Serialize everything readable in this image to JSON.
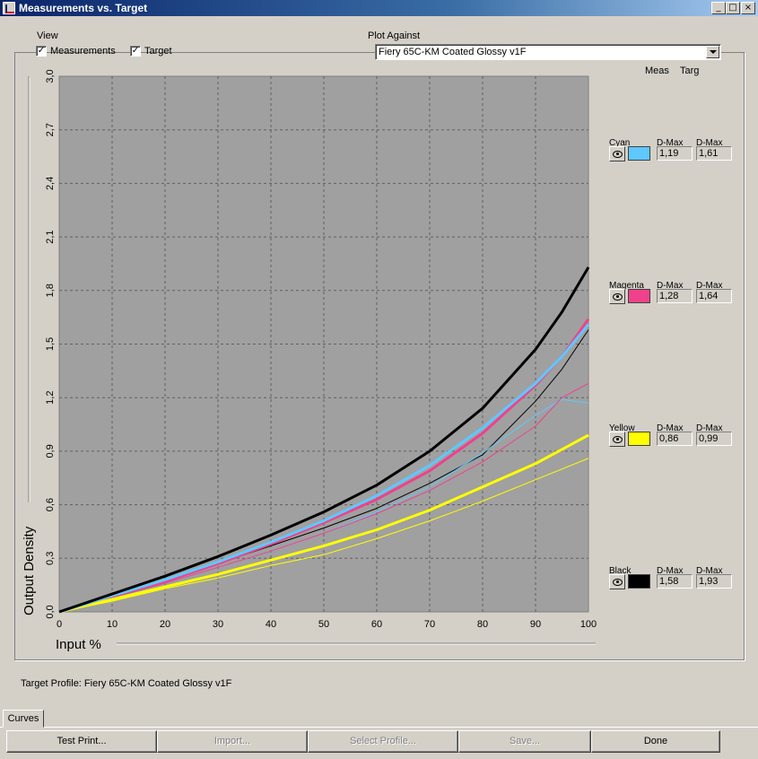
{
  "window": {
    "title": "Measurements vs. Target",
    "minimize_glyph": "_",
    "maximize_glyph": "□",
    "close_glyph": "×"
  },
  "view": {
    "label": "View",
    "measurements": {
      "label": "Measurements",
      "checked": true
    },
    "target": {
      "label": "Target",
      "checked": true
    }
  },
  "plot_against": {
    "label": "Plot Against",
    "value": "Fiery 65C-KM Coated Glossy v1F"
  },
  "column_headers": {
    "meas": "Meas",
    "targ": "Targ"
  },
  "channels": [
    {
      "name": "Cyan",
      "color": "#5ec8ff",
      "dmax_label": "D-Max",
      "meas": "1,19",
      "targ": "1,61"
    },
    {
      "name": "Magenta",
      "color": "#f0418c",
      "dmax_label": "D-Max",
      "meas": "1,28",
      "targ": "1,64"
    },
    {
      "name": "Yellow",
      "color": "#ffff00",
      "dmax_label": "D-Max",
      "meas": "0,86",
      "targ": "0,99"
    },
    {
      "name": "Black",
      "color": "#000000",
      "dmax_label": "D-Max",
      "meas": "1,58",
      "targ": "1,93"
    }
  ],
  "target_profile": "Target Profile: Fiery 65C-KM Coated Glossy v1F",
  "tabs": {
    "curves": "Curves"
  },
  "buttons": {
    "test_print": "Test Print...",
    "import": "Import...",
    "select_profile": "Select Profile...",
    "save": "Save...",
    "done": "Done"
  },
  "chart_data": {
    "type": "line",
    "xlabel": "Input %",
    "ylabel": "Output Density",
    "xlim": [
      0,
      100
    ],
    "ylim": [
      0,
      3.0
    ],
    "x_ticks": [
      "0",
      "10",
      "20",
      "30",
      "40",
      "50",
      "60",
      "70",
      "80",
      "90",
      "100"
    ],
    "y_ticks": [
      "0,0",
      "0,3",
      "0,6",
      "0,9",
      "1,2",
      "1,5",
      "1,8",
      "2,1",
      "2,4",
      "2,7",
      "3,0"
    ],
    "grid": true,
    "plot_background": "#a0a0a0",
    "x": [
      0,
      10,
      20,
      30,
      40,
      50,
      60,
      70,
      80,
      90,
      95,
      100
    ],
    "series": [
      {
        "channel": "Black",
        "kind": "target",
        "color": "#000000",
        "values": [
          0,
          0.1,
          0.2,
          0.31,
          0.43,
          0.56,
          0.71,
          0.9,
          1.14,
          1.47,
          1.68,
          1.93
        ]
      },
      {
        "channel": "Cyan",
        "kind": "target",
        "color": "#5ec8ff",
        "values": [
          0,
          0.09,
          0.18,
          0.28,
          0.39,
          0.51,
          0.65,
          0.82,
          1.03,
          1.28,
          1.43,
          1.61
        ]
      },
      {
        "channel": "Magenta",
        "kind": "target",
        "color": "#f0418c",
        "values": [
          0,
          0.09,
          0.17,
          0.27,
          0.38,
          0.5,
          0.63,
          0.79,
          1.0,
          1.27,
          1.43,
          1.64
        ]
      },
      {
        "channel": "Yellow",
        "kind": "target",
        "color": "#ffff00",
        "values": [
          0,
          0.07,
          0.14,
          0.21,
          0.29,
          0.37,
          0.46,
          0.57,
          0.7,
          0.83,
          0.91,
          0.99
        ]
      },
      {
        "channel": "Black",
        "kind": "measured",
        "color": "#000000",
        "values": [
          0,
          0.09,
          0.18,
          0.27,
          0.37,
          0.47,
          0.58,
          0.72,
          0.88,
          1.18,
          1.36,
          1.58
        ]
      },
      {
        "channel": "Cyan",
        "kind": "measured",
        "color": "#5ec8ff",
        "values": [
          0,
          0.08,
          0.16,
          0.25,
          0.34,
          0.44,
          0.56,
          0.7,
          0.89,
          1.1,
          1.19,
          1.17
        ]
      },
      {
        "channel": "Magenta",
        "kind": "measured",
        "color": "#f0418c",
        "values": [
          0,
          0.08,
          0.16,
          0.25,
          0.34,
          0.44,
          0.55,
          0.68,
          0.84,
          1.04,
          1.2,
          1.28
        ]
      },
      {
        "channel": "Yellow",
        "kind": "measured",
        "color": "#ffff00",
        "values": [
          0,
          0.06,
          0.13,
          0.19,
          0.26,
          0.32,
          0.41,
          0.51,
          0.62,
          0.74,
          0.8,
          0.86
        ]
      }
    ]
  }
}
